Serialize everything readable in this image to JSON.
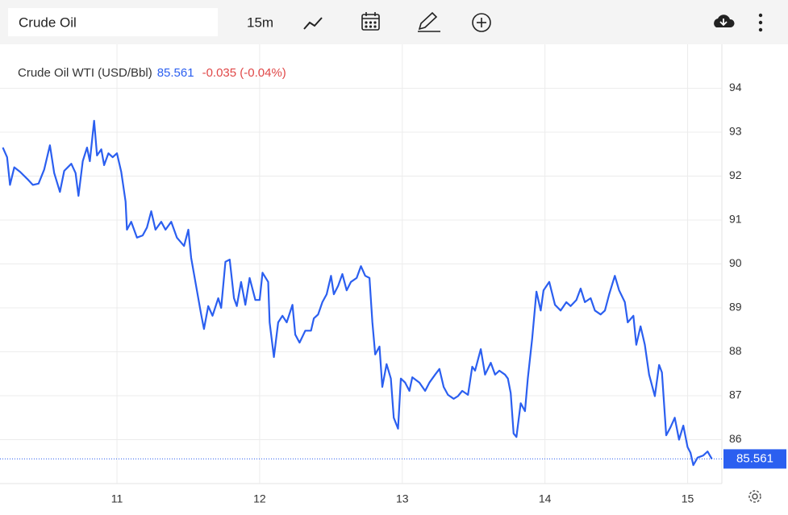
{
  "toolbar": {
    "search": "Crude Oil",
    "interval": "15m"
  },
  "chart_data": {
    "type": "line",
    "title": "Crude Oil WTI (USD/Bbl)",
    "last_value": 85.561,
    "change": "-0.035 (-0.04%)",
    "color": "#2b5ff0",
    "grid": true,
    "xlim": [
      10.18,
      15.24
    ],
    "xticks": [
      11,
      12,
      13,
      14,
      15
    ],
    "ylim": [
      85,
      95
    ],
    "yticks": [
      86,
      87,
      88,
      89,
      90,
      91,
      92,
      93,
      94
    ],
    "x": [
      10.2,
      10.23,
      10.25,
      10.28,
      10.32,
      10.37,
      10.41,
      10.45,
      10.49,
      10.53,
      10.56,
      10.6,
      10.63,
      10.68,
      10.71,
      10.73,
      10.76,
      10.79,
      10.81,
      10.84,
      10.86,
      10.89,
      10.91,
      10.94,
      10.97,
      11.0,
      11.03,
      11.06,
      11.07,
      11.1,
      11.14,
      11.18,
      11.21,
      11.24,
      11.27,
      11.31,
      11.34,
      11.38,
      11.42,
      11.47,
      11.5,
      11.52,
      11.56,
      11.59,
      11.61,
      11.64,
      11.67,
      11.71,
      11.73,
      11.76,
      11.79,
      11.82,
      11.84,
      11.87,
      11.9,
      11.93,
      11.97,
      12.0,
      12.02,
      12.06,
      12.07,
      12.1,
      12.13,
      12.16,
      12.19,
      12.23,
      12.25,
      12.28,
      12.32,
      12.36,
      12.38,
      12.41,
      12.44,
      12.47,
      12.5,
      12.52,
      12.55,
      12.58,
      12.61,
      12.64,
      12.68,
      12.71,
      12.74,
      12.77,
      12.79,
      12.81,
      12.84,
      12.86,
      12.89,
      12.92,
      12.94,
      12.97,
      12.99,
      13.02,
      13.05,
      13.07,
      13.12,
      13.16,
      13.19,
      13.23,
      13.26,
      13.29,
      13.32,
      13.36,
      13.39,
      13.42,
      13.46,
      13.49,
      13.51,
      13.55,
      13.58,
      13.62,
      13.65,
      13.68,
      13.72,
      13.74,
      13.76,
      13.78,
      13.8,
      13.83,
      13.86,
      13.88,
      13.91,
      13.94,
      13.97,
      13.99,
      14.03,
      14.07,
      14.11,
      14.15,
      14.18,
      14.22,
      14.25,
      14.28,
      14.32,
      14.35,
      14.39,
      14.42,
      14.45,
      14.49,
      14.52,
      14.56,
      14.58,
      14.62,
      14.64,
      14.67,
      14.7,
      14.73,
      14.77,
      14.8,
      14.82,
      14.85,
      14.88,
      14.91,
      14.94,
      14.97,
      15.0,
      15.02,
      15.04,
      15.07,
      15.11,
      15.14,
      15.17
    ],
    "values": [
      92.65,
      92.43,
      91.8,
      92.2,
      92.1,
      91.94,
      91.8,
      91.83,
      92.15,
      92.7,
      92.07,
      91.64,
      92.12,
      92.28,
      92.07,
      91.55,
      92.34,
      92.65,
      92.34,
      93.26,
      92.47,
      92.61,
      92.25,
      92.52,
      92.43,
      92.52,
      92.1,
      91.42,
      90.78,
      90.96,
      90.6,
      90.65,
      90.83,
      91.2,
      90.78,
      90.96,
      90.78,
      90.96,
      90.6,
      90.41,
      90.78,
      90.14,
      89.4,
      88.85,
      88.52,
      89.04,
      88.82,
      89.22,
      89.0,
      90.05,
      90.1,
      89.22,
      89.04,
      89.59,
      89.07,
      89.68,
      89.18,
      89.18,
      89.8,
      89.59,
      88.67,
      87.88,
      88.67,
      88.82,
      88.67,
      89.07,
      88.39,
      88.21,
      88.48,
      88.48,
      88.76,
      88.85,
      89.13,
      89.31,
      89.73,
      89.31,
      89.5,
      89.77,
      89.4,
      89.59,
      89.68,
      89.95,
      89.73,
      89.68,
      88.67,
      87.94,
      88.12,
      87.2,
      87.72,
      87.39,
      86.5,
      86.25,
      87.39,
      87.3,
      87.11,
      87.42,
      87.3,
      87.11,
      87.3,
      87.48,
      87.61,
      87.2,
      87.02,
      86.93,
      86.99,
      87.11,
      87.02,
      87.66,
      87.57,
      88.06,
      87.48,
      87.75,
      87.48,
      87.57,
      87.48,
      87.39,
      87.06,
      86.14,
      86.06,
      86.83,
      86.65,
      87.39,
      88.3,
      89.37,
      88.94,
      89.4,
      89.59,
      89.07,
      88.94,
      89.13,
      89.04,
      89.18,
      89.44,
      89.13,
      89.22,
      88.94,
      88.85,
      88.94,
      89.31,
      89.73,
      89.4,
      89.13,
      88.67,
      88.82,
      88.16,
      88.58,
      88.16,
      87.48,
      86.99,
      87.7,
      87.53,
      86.1,
      86.28,
      86.5,
      86.0,
      86.32,
      85.83,
      85.7,
      85.42,
      85.59,
      85.64,
      85.73,
      85.561
    ]
  }
}
